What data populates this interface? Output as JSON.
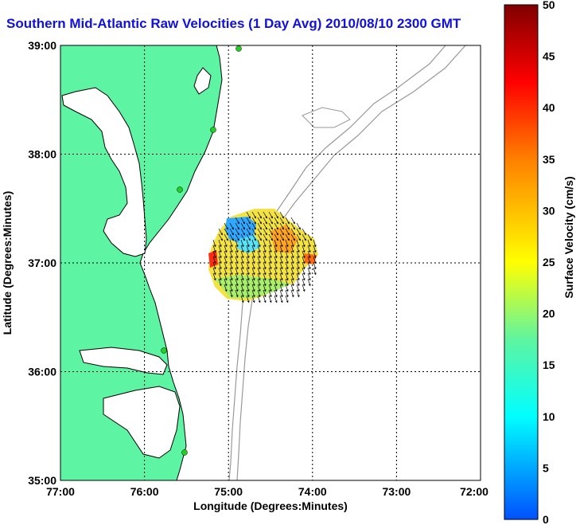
{
  "title": "Southern Mid-Atlantic Raw Velocities (1 Day Avg) 2010/08/10 2300 GMT",
  "x_axis": {
    "label": "Longitude (Degrees:Minutes)",
    "ticks": [
      "77:00",
      "76:00",
      "75:00",
      "74:00",
      "73:00",
      "72:00"
    ]
  },
  "y_axis": {
    "label": "Latitude (Degrees:Minutes)",
    "ticks": [
      "39:00",
      "38:00",
      "37:00",
      "36:00",
      "35:00"
    ]
  },
  "colorbar": {
    "label": "Surface Velocity (cm/s)",
    "ticks": [
      "50",
      "45",
      "40",
      "35",
      "30",
      "25",
      "20",
      "15",
      "10",
      "5",
      "0"
    ],
    "min": 0,
    "max": 50
  },
  "colors": {
    "land": "#5df5a3",
    "title": "#1010e0",
    "station": "#22d022"
  }
}
